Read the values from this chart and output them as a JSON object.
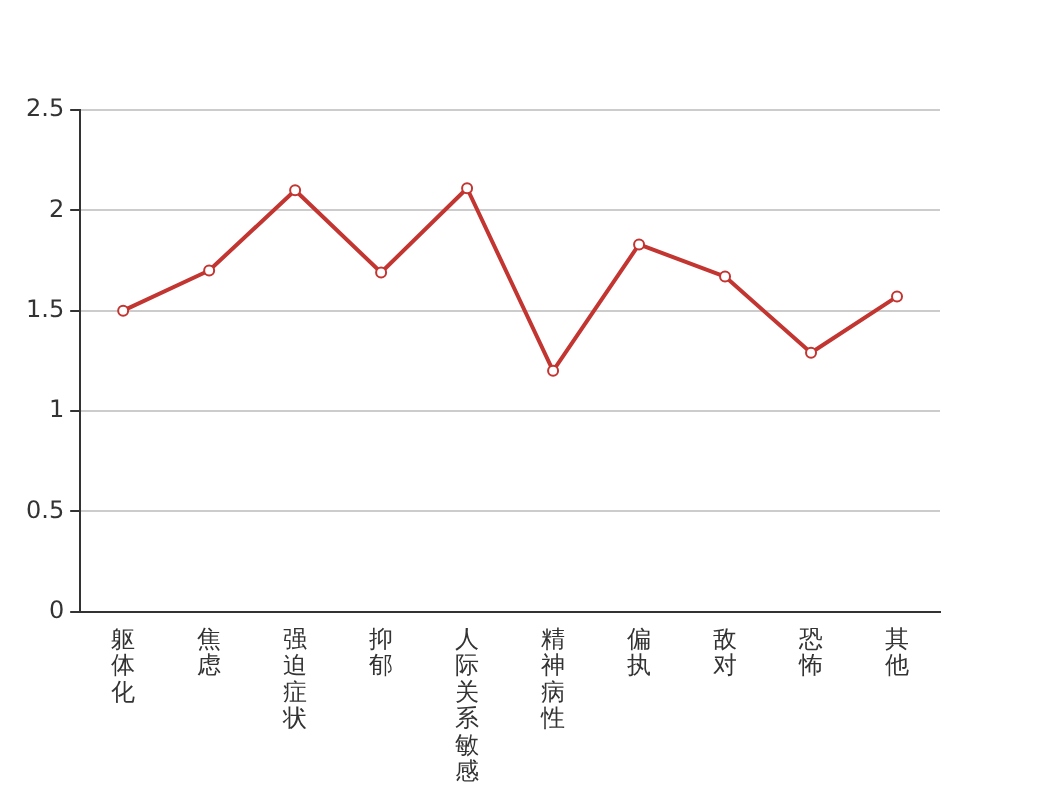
{
  "chart_data": {
    "type": "line",
    "categories": [
      "躯体化",
      "焦虑",
      "强迫症状",
      "抑郁",
      "人际关系敏感",
      "精神病性",
      "偏执",
      "敌对",
      "恐怖",
      "其他"
    ],
    "series": [
      {
        "color": "#c23531",
        "values": [
          1.5,
          1.7,
          2.1,
          1.69,
          2.11,
          1.2,
          1.83,
          1.67,
          1.29,
          1.57
        ]
      }
    ],
    "ylim": [
      0,
      2.5
    ],
    "yticks": [
      0,
      0.5,
      1,
      1.5,
      2,
      2.5
    ],
    "grid": "y",
    "marker": "circle",
    "legend": false
  }
}
